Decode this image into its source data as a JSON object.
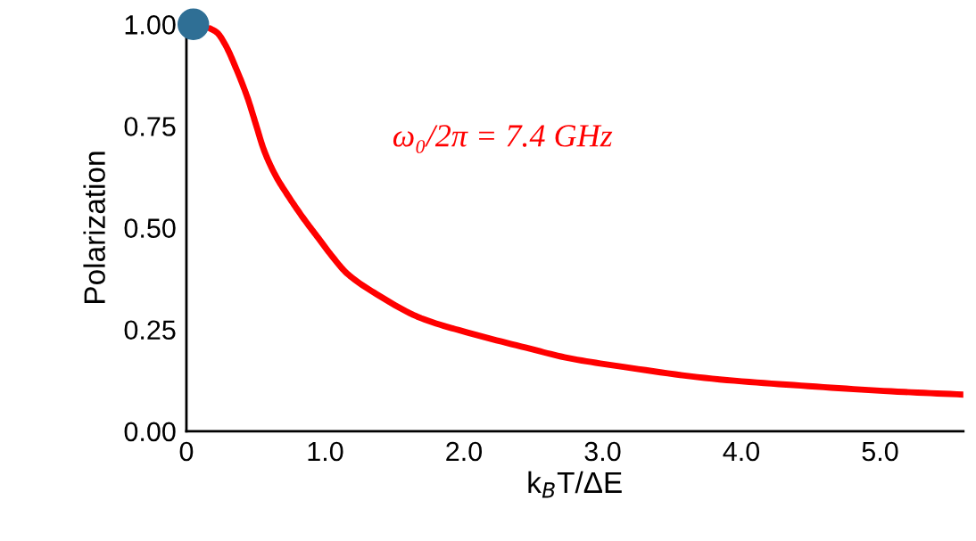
{
  "chart_data": {
    "type": "line",
    "xlabel": "k$_{B}$T/ΔE",
    "ylabel": "Polarization",
    "xlim": [
      0,
      5.6
    ],
    "ylim": [
      0,
      1.0
    ],
    "xticks": [
      0,
      {
        "value": 1,
        "label": "1.0"
      },
      {
        "value": 2,
        "label": "2.0"
      },
      {
        "value": 3,
        "label": "3.0"
      },
      {
        "value": 4,
        "label": "4.0"
      },
      {
        "value": 5,
        "label": "5.0"
      }
    ],
    "yticks": [
      {
        "value": 0,
        "label": "0.00"
      },
      {
        "value": 0.25,
        "label": "0.25"
      },
      {
        "value": 0.5,
        "label": "0.50"
      },
      {
        "value": 0.75,
        "label": "0.75"
      },
      {
        "value": 1.0,
        "label": "1.00"
      }
    ],
    "annotations": [
      "ω₀/2π = 7.4 GHz"
    ],
    "series": [
      {
        "color": "#ff0000",
        "marker": "none",
        "line_style": "solid",
        "x": [
          0.17,
          0.22,
          0.28,
          0.36,
          0.44,
          0.5,
          0.56,
          0.64,
          0.73,
          0.84,
          0.95,
          1.05,
          1.16,
          1.37,
          1.69,
          2.02,
          2.45,
          2.75,
          3.15,
          3.79,
          4.43,
          5.08,
          5.6
        ],
        "values": [
          0.99,
          0.98,
          0.95,
          0.89,
          0.82,
          0.755,
          0.69,
          0.63,
          0.58,
          0.525,
          0.475,
          0.43,
          0.387,
          0.337,
          0.278,
          0.243,
          0.205,
          0.18,
          0.158,
          0.129,
          0.112,
          0.098,
          0.09
        ]
      },
      {
        "type": "scatter",
        "color": "#2f6f95",
        "marker": "circle",
        "x": [
          0.05
        ],
        "values": [
          1.0
        ]
      }
    ]
  }
}
